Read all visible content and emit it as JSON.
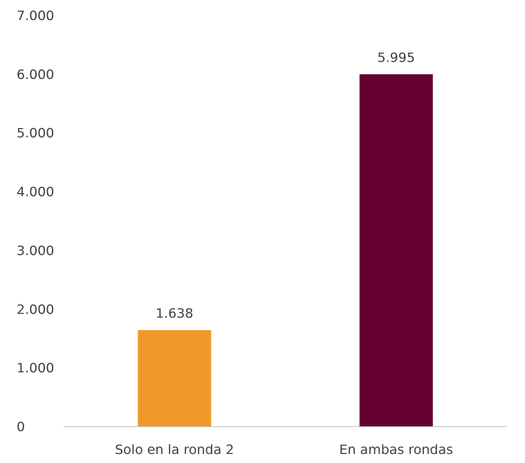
{
  "chart_data": {
    "type": "bar",
    "categories": [
      "Solo en la ronda 2",
      "En ambas rondas"
    ],
    "values": [
      1638,
      5995
    ],
    "data_labels": [
      "1.638",
      "5.995"
    ],
    "bar_colors": [
      "#F0992A",
      "#660033"
    ],
    "ylim": [
      0,
      7000
    ],
    "yticks": [
      0,
      1000,
      2000,
      3000,
      4000,
      5000,
      6000,
      7000
    ],
    "ytick_labels": [
      "0",
      "1.000",
      "2.000",
      "3.000",
      "4.000",
      "5.000",
      "6.000",
      "7.000"
    ],
    "grid": false,
    "legend": "none",
    "axis_color": "#BFBFBF",
    "text_color": "#404040"
  }
}
